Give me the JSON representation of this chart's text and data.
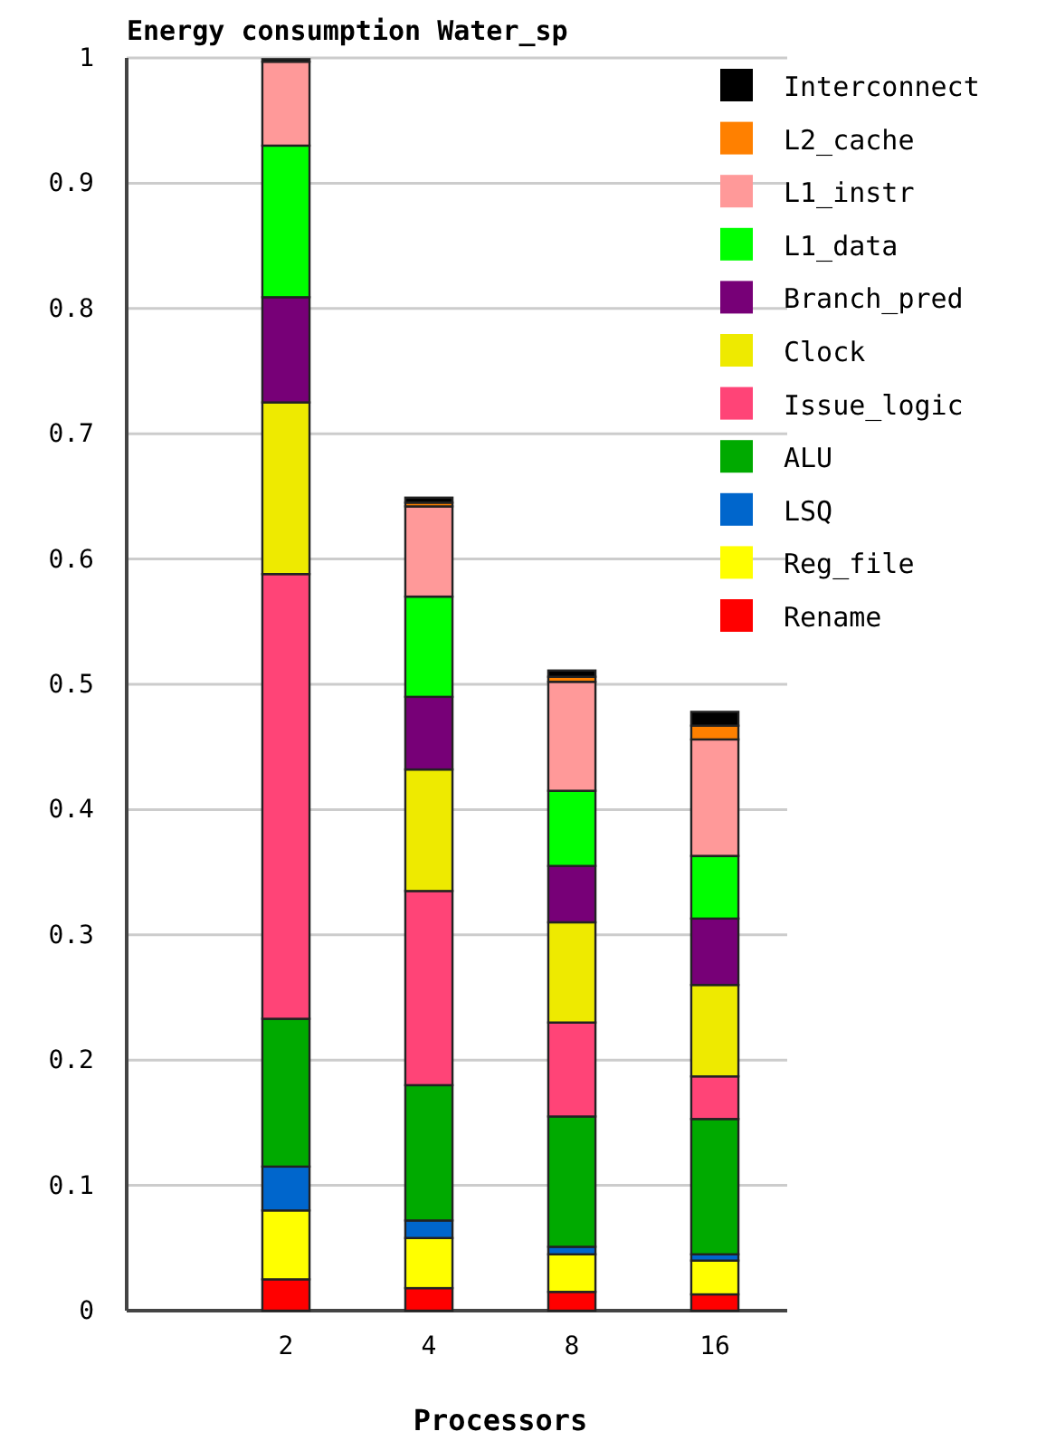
{
  "chart_data": {
    "type": "bar",
    "title": "Energy consumption Water_sp",
    "xlabel": "Processors",
    "categories": [
      "2",
      "4",
      "8",
      "16"
    ],
    "stacked": true,
    "ylim": [
      0,
      1
    ],
    "yticks": [
      0,
      0.1,
      0.2,
      0.3,
      0.4,
      0.5,
      0.6,
      0.7,
      0.8,
      0.9,
      1
    ],
    "grid": "y",
    "legend": "top right",
    "series": [
      {
        "name": "Rename",
        "color": "#ff0000",
        "values": [
          0.025,
          0.018,
          0.015,
          0.013
        ]
      },
      {
        "name": "Reg_file",
        "color": "#ffff00",
        "values": [
          0.055,
          0.04,
          0.03,
          0.027
        ]
      },
      {
        "name": "LSQ",
        "color": "#0066cc",
        "values": [
          0.035,
          0.014,
          0.006,
          0.005
        ]
      },
      {
        "name": "ALU",
        "color": "#00aa00",
        "values": [
          0.118,
          0.108,
          0.104,
          0.108
        ]
      },
      {
        "name": "Issue_logic",
        "color": "#ff4477",
        "values": [
          0.355,
          0.155,
          0.075,
          0.034
        ]
      },
      {
        "name": "Clock",
        "color": "#eeea00",
        "values": [
          0.137,
          0.097,
          0.08,
          0.073
        ]
      },
      {
        "name": "Branch_pred",
        "color": "#770077",
        "values": [
          0.084,
          0.058,
          0.045,
          0.053
        ]
      },
      {
        "name": "L1_data",
        "color": "#00ff00",
        "values": [
          0.121,
          0.08,
          0.06,
          0.05
        ]
      },
      {
        "name": "L1_instr",
        "color": "#ff9999",
        "values": [
          0.067,
          0.072,
          0.087,
          0.093
        ]
      },
      {
        "name": "L2_cache",
        "color": "#ff8000",
        "values": [
          null,
          0.003,
          0.004,
          0.011
        ]
      },
      {
        "name": "Interconnect",
        "color": "#000000",
        "values": [
          0.002,
          0.004,
          0.005,
          0.011
        ]
      }
    ]
  }
}
